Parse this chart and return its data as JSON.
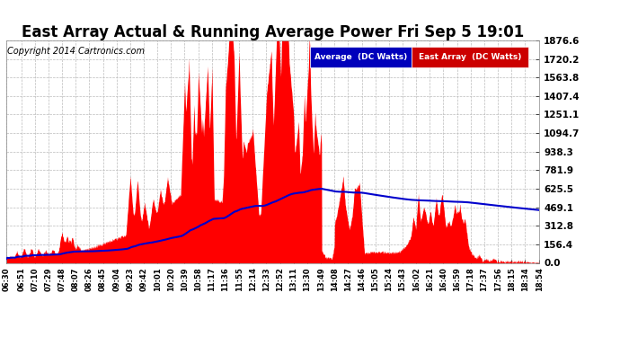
{
  "title": "East Array Actual & Running Average Power Fri Sep 5 19:01",
  "copyright": "Copyright 2014 Cartronics.com",
  "legend_avg": "Average  (DC Watts)",
  "legend_east": "East Array  (DC Watts)",
  "legend_avg_bg": "#0000bb",
  "legend_east_bg": "#cc0000",
  "ytick_values": [
    0.0,
    156.4,
    312.8,
    469.1,
    625.5,
    781.9,
    938.3,
    1094.7,
    1251.1,
    1407.4,
    1563.8,
    1720.2,
    1876.6
  ],
  "ymax": 1876.6,
  "ymin": 0.0,
  "bg_color": "#ffffff",
  "plot_bg": "#ffffff",
  "grid_color": "#bbbbbb",
  "fill_color": "#ff0000",
  "line_color": "#0000cc",
  "title_fontsize": 12,
  "copyright_fontsize": 7,
  "xtick_labels": [
    "06:30",
    "06:51",
    "07:10",
    "07:29",
    "07:48",
    "08:07",
    "08:26",
    "08:45",
    "09:04",
    "09:23",
    "09:42",
    "10:01",
    "10:20",
    "10:39",
    "10:58",
    "11:17",
    "11:36",
    "11:55",
    "12:14",
    "12:33",
    "12:52",
    "13:11",
    "13:30",
    "13:49",
    "14:08",
    "14:27",
    "14:46",
    "15:05",
    "15:24",
    "15:43",
    "16:02",
    "16:21",
    "16:40",
    "16:59",
    "17:18",
    "17:37",
    "17:56",
    "18:15",
    "18:34",
    "18:54"
  ],
  "figsize": [
    6.9,
    3.75
  ],
  "dpi": 100
}
